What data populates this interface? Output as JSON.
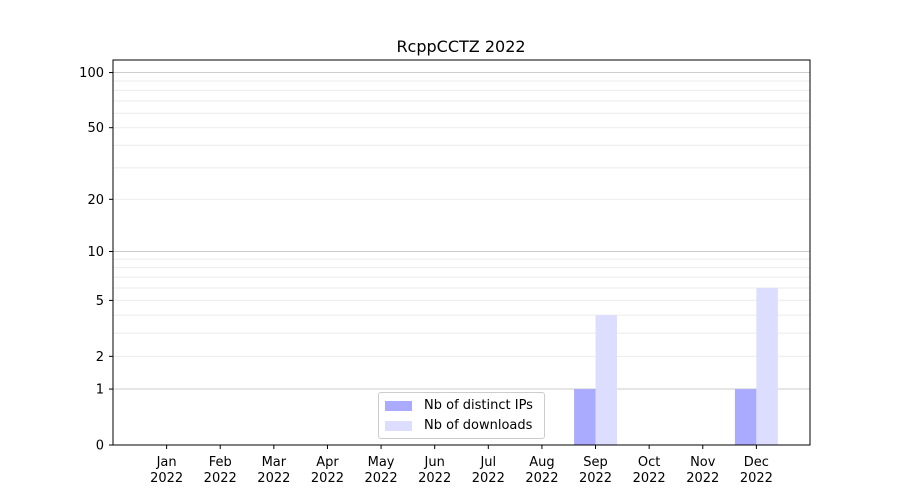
{
  "chart_data": {
    "type": "bar",
    "title": "RcppCCTZ 2022",
    "xlabel": "",
    "ylabel": "",
    "yscale": "log(1+y)",
    "ylim": [
      0,
      117
    ],
    "yticks": [
      0,
      1,
      2,
      5,
      10,
      20,
      50,
      100
    ],
    "grid": true,
    "legend_position": "lower-center",
    "categories": [
      "Jan\n2022",
      "Feb\n2022",
      "Mar\n2022",
      "Apr\n2022",
      "May\n2022",
      "Jun\n2022",
      "Jul\n2022",
      "Aug\n2022",
      "Sep\n2022",
      "Oct\n2022",
      "Nov\n2022",
      "Dec\n2022"
    ],
    "series": [
      {
        "name": "Nb of distinct IPs",
        "color": "#aaaaff",
        "values": [
          0,
          0,
          0,
          0,
          0,
          0,
          0,
          0,
          1,
          0,
          0,
          1
        ]
      },
      {
        "name": "Nb of downloads",
        "color": "#ddddff",
        "values": [
          0,
          0,
          0,
          0,
          0,
          0,
          0,
          0,
          4,
          0,
          0,
          6
        ]
      }
    ]
  }
}
